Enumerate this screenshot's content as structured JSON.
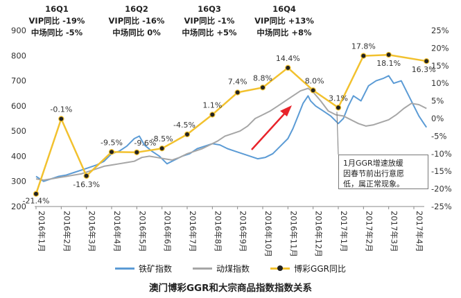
{
  "chart_data": {
    "type": "line",
    "title": "",
    "xlabel": "",
    "ylabel": "",
    "left_axis": {
      "ticks": [
        200,
        300,
        400,
        500,
        600,
        700,
        800,
        900
      ],
      "ylim": [
        200,
        900
      ]
    },
    "right_axis": {
      "ticks": [
        "-25%",
        "-20%",
        "-15%",
        "-10%",
        "-5%",
        "0%",
        "5%",
        "10%",
        "15%",
        "20%",
        "25%"
      ],
      "ylim": [
        -25,
        25
      ]
    },
    "categories": [
      "2016年1月",
      "2016年2月",
      "2016年3月",
      "2016年4月",
      "2016年5月",
      "2016年6月",
      "2016年7月",
      "2016年8月",
      "2016年9月",
      "2016年10月",
      "2016年11月",
      "2016年12月",
      "2017年1月",
      "2017年2月",
      "2017年3月",
      "2017年4月"
    ],
    "series": [
      {
        "name": "铁矿指数",
        "axis": "left",
        "color": "#5b9bd5",
        "x": [
          0,
          0.3,
          0.6,
          0.9,
          1.2,
          1.5,
          1.8,
          2.1,
          2.4,
          2.7,
          3.0,
          3.3,
          3.6,
          3.9,
          4.1,
          4.3,
          4.6,
          4.9,
          5.2,
          5.5,
          5.8,
          6.1,
          6.4,
          6.7,
          7.0,
          7.3,
          7.6,
          7.9,
          8.2,
          8.5,
          8.8,
          9.1,
          9.4,
          9.7,
          10.0,
          10.2,
          10.4,
          10.6,
          10.8,
          10.9,
          11.1,
          11.4,
          11.7,
          12.0,
          12.2,
          12.4,
          12.6,
          12.9,
          13.2,
          13.5,
          13.8,
          14.0,
          14.2,
          14.5,
          14.8,
          15.0,
          15.2,
          15.4,
          15.5
        ],
        "values": [
          320,
          300,
          310,
          320,
          325,
          335,
          345,
          355,
          365,
          380,
          410,
          420,
          440,
          470,
          480,
          445,
          420,
          400,
          370,
          385,
          400,
          410,
          430,
          440,
          450,
          445,
          430,
          420,
          410,
          400,
          390,
          395,
          410,
          440,
          470,
          510,
          560,
          610,
          640,
          620,
          600,
          580,
          560,
          530,
          550,
          600,
          640,
          620,
          680,
          700,
          710,
          720,
          690,
          700,
          640,
          600,
          560,
          530,
          515
        ]
      },
      {
        "name": "动煤指数",
        "axis": "left",
        "color": "#a6a6a6",
        "x": [
          0,
          0.3,
          0.6,
          0.9,
          1.2,
          1.5,
          1.8,
          2.1,
          2.4,
          2.7,
          3.0,
          3.3,
          3.6,
          3.9,
          4.2,
          4.5,
          4.8,
          5.1,
          5.4,
          5.7,
          6.0,
          6.3,
          6.6,
          6.9,
          7.2,
          7.5,
          7.8,
          8.1,
          8.4,
          8.7,
          9.0,
          9.3,
          9.6,
          9.9,
          10.2,
          10.5,
          10.8,
          11.0,
          11.3,
          11.6,
          11.9,
          12.2,
          12.5,
          12.8,
          13.1,
          13.4,
          13.7,
          14.0,
          14.3,
          14.6,
          14.9,
          15.2,
          15.5
        ],
        "values": [
          310,
          305,
          310,
          315,
          320,
          325,
          330,
          340,
          350,
          360,
          365,
          370,
          375,
          380,
          395,
          400,
          395,
          390,
          385,
          395,
          410,
          420,
          430,
          445,
          460,
          480,
          490,
          500,
          520,
          550,
          565,
          580,
          600,
          620,
          640,
          660,
          670,
          655,
          620,
          580,
          565,
          560,
          545,
          530,
          520,
          525,
          535,
          545,
          565,
          590,
          610,
          605,
          590
        ]
      },
      {
        "name": "博彩GGR同比",
        "axis": "right",
        "color": "#f2c12e",
        "x": [
          0,
          1,
          2,
          3,
          4,
          5,
          6,
          7,
          8,
          9,
          10,
          11,
          12,
          13,
          14,
          15.5
        ],
        "values": [
          -21.4,
          -0.1,
          -16.3,
          -9.5,
          -9.6,
          -8.5,
          -4.5,
          1.1,
          7.4,
          8.8,
          14.4,
          8.0,
          3.1,
          17.8,
          18.1,
          16.3
        ]
      }
    ],
    "data_labels": [
      "-21.4%",
      "-0.1%",
      "-16.3%",
      "-9.5%",
      "-9.6%",
      "-8.5%",
      "-4.5%",
      "1.1%",
      "7.4%",
      "8.8%",
      "14.4%",
      "8.0%",
      "3.1%",
      "17.8%",
      "18.1%",
      "16.3%"
    ],
    "quarter_annotations": [
      {
        "title": "16Q1",
        "vip": "VIP同比 -19%",
        "mass": "中场同比 -5%",
        "highlight": false
      },
      {
        "title": "16Q2",
        "vip": "VIP同比 -16%",
        "mass": "中场同比 0%",
        "highlight": false
      },
      {
        "title": "16Q3",
        "vip": "VIP同比 -1%",
        "mass": "中场同比 +5%",
        "highlight": false
      },
      {
        "title": "16Q4",
        "vip": "VIP同比 +13%",
        "mass": "中场同比 +8%",
        "highlight": true
      }
    ],
    "note": [
      "1月GGR增速放缓",
      "因春节前出行意愿",
      "低，属正常现象。"
    ],
    "legend_placement": "bottom",
    "grid": false
  },
  "legend": [
    {
      "label": "铁矿指数",
      "color": "#5b9bd5",
      "marker": false
    },
    {
      "label": "动煤指数",
      "color": "#a6a6a6",
      "marker": false
    },
    {
      "label": "博彩GGR同比",
      "color": "#f2c12e",
      "marker": true
    }
  ],
  "caption": "澳门博彩GGR和大宗商品指数指数关系",
  "colors": {
    "highlight": "#e8232a",
    "arrow": "#e8232a",
    "axis": "#888888",
    "marker": "#222222"
  }
}
